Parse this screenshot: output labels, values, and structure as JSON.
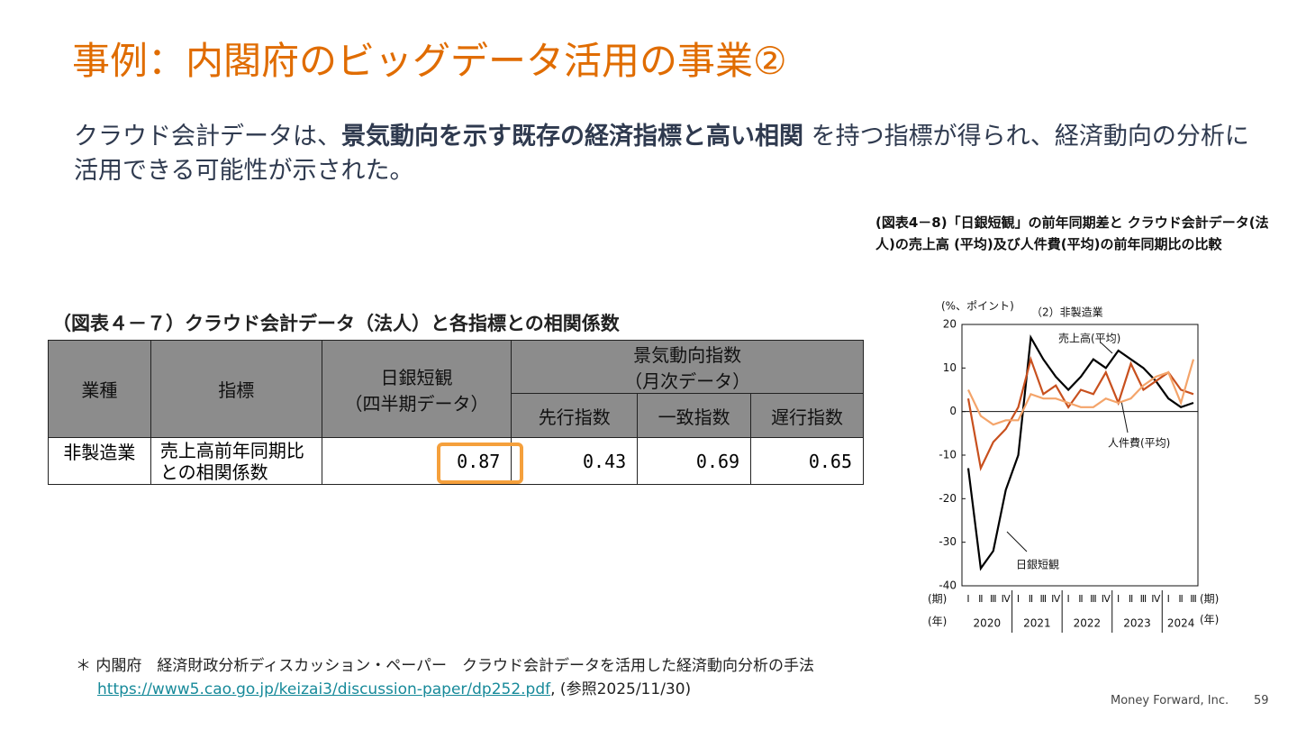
{
  "header": {
    "title": "事例：内閣府のビッグデータ活用の事業②"
  },
  "body": {
    "lead": "クラウド会計データは、",
    "emphasis": "景気動向を示す既存の経済指標と高い相関",
    "rest": " を持つ指標が得られ、経済動向の分析に活用できる可能性が示された。"
  },
  "table": {
    "title": "（図表４－７）クラウド会計データ（法人）と各指標との相関係数",
    "header": {
      "industry": "業種",
      "indicator": "指標",
      "tankan": "日銀短観",
      "tankan_sub": "（四半期データ）",
      "ci": "景気動向指数",
      "ci_sub": "（月次データ）",
      "leading": "先行指数",
      "coincident": "一致指数",
      "lagging": "遅行指数"
    },
    "rows": [
      [
        "非製造業",
        "売上高前年同期比",
        "との相関係数",
        0.87,
        0.43,
        0.69,
        0.65
      ]
    ]
  },
  "chart_data": {
    "type": "line",
    "title": "(図表4－8)「日銀短観」の前年同期差と クラウド会計データ(法人)の売上高 (平均)及び人件費(平均)の前年同期比の比較",
    "subtitle": "（2）非製造業",
    "y_label": "(%、ポイント)",
    "x_label_period": "(期)",
    "x_label_year": "(年)",
    "categories": [
      "Ⅰ",
      "Ⅱ",
      "Ⅲ",
      "Ⅳ",
      "Ⅰ",
      "Ⅱ",
      "Ⅲ",
      "Ⅳ",
      "Ⅰ",
      "Ⅱ",
      "Ⅲ",
      "Ⅳ",
      "Ⅰ",
      "Ⅱ",
      "Ⅲ",
      "Ⅳ",
      "Ⅰ",
      "Ⅱ",
      "Ⅲ"
    ],
    "years": [
      "2020",
      "2021",
      "2022",
      "2023",
      "2024"
    ],
    "series": [
      {
        "name": "日銀短観",
        "color": "#000000",
        "values": [
          -13,
          -36,
          -32,
          -18,
          -10,
          17,
          12,
          8,
          5,
          8,
          12,
          10,
          14,
          12,
          10,
          7,
          3,
          1,
          2
        ]
      },
      {
        "name": "売上高(平均)",
        "color": "#c8501e",
        "values": [
          3,
          -13,
          -7,
          -4,
          1,
          12,
          4,
          6,
          1,
          5,
          4,
          9,
          2,
          11,
          5,
          7,
          9,
          5,
          4
        ]
      },
      {
        "name": "人件費(平均)",
        "color": "#f4a46a",
        "values": [
          5,
          -1,
          -3,
          -2,
          -2,
          4,
          3,
          3,
          2,
          1,
          1,
          3,
          2,
          3,
          6,
          8,
          9,
          2,
          12
        ]
      }
    ],
    "ylim": [
      -40,
      20
    ],
    "yticks": [
      -40,
      -30,
      -20,
      -10,
      0,
      10,
      20
    ]
  },
  "footnote": {
    "marker": "＊",
    "text": "内閣府　経済財政分析ディスカッション・ペーパー　クラウド会計データを活用した経済動向分析の手法",
    "link": "https://www5.cao.go.jp/keizai3/discussion-paper/dp252.pdf",
    "ref": ", (参照2025/11/30)"
  },
  "footer": {
    "company": "Money Forward, Inc.",
    "page": "59"
  }
}
